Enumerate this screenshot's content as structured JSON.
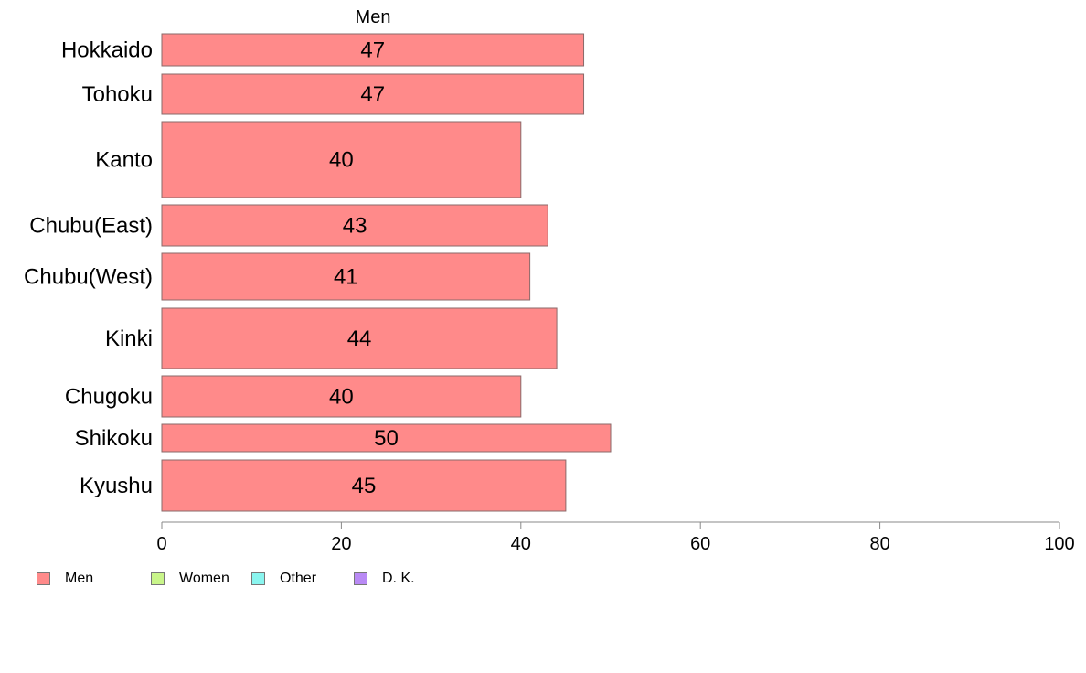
{
  "chart_data": {
    "type": "bar",
    "orientation": "horizontal",
    "title": "Men",
    "categories": [
      "Hokkaido",
      "Tohoku",
      "Kanto",
      "Chubu(East)",
      "Chubu(West)",
      "Kinki",
      "Chugoku",
      "Shikoku",
      "Kyushu"
    ],
    "series": [
      {
        "name": "Men",
        "values": [
          47,
          47,
          40,
          43,
          41,
          44,
          40,
          50,
          45
        ],
        "color": "#ff8a8a"
      }
    ],
    "data_labels": [
      "47",
      "47",
      "40",
      "43",
      "41",
      "44",
      "40",
      "50",
      "45"
    ],
    "xlim": [
      0,
      100
    ],
    "xticks": [
      0,
      20,
      40,
      60,
      80,
      100
    ],
    "xtick_labels": [
      "0",
      "20",
      "40",
      "60",
      "80",
      "100"
    ],
    "grid": false,
    "legend_position": "bottom-left"
  },
  "legend": [
    {
      "label": "Men",
      "color": "#ff8a8a"
    },
    {
      "label": "Women",
      "color": "#c9f58a"
    },
    {
      "label": "Other",
      "color": "#8af5ef"
    },
    {
      "label": "D. K.",
      "color": "#b98af5"
    }
  ]
}
